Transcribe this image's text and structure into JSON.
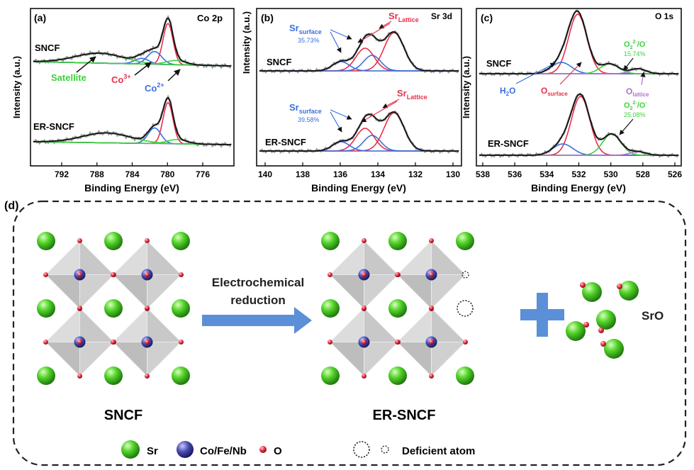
{
  "colors": {
    "sr": "#3fbf1f",
    "co": "#3c3fa0",
    "o": "#e8304a",
    "pink": "#e8304a",
    "blue": "#3b6fe0",
    "green": "#3dd13d",
    "purple": "#b070d0",
    "peach": "#f3c9a0",
    "fit": "#111111",
    "raw": "#999999",
    "arrow": "#5b8fd8"
  },
  "panel_a": {
    "letter": "(a)",
    "title": "Co 2p",
    "ylabel": "Intensity (a.u.)",
    "xlabel": "Binding Energy (eV)",
    "ticks": [
      "792",
      "788",
      "784",
      "780",
      "776"
    ],
    "sample_top": "SNCF",
    "sample_bottom": "ER-SNCF",
    "label_satellite": "Satellite",
    "label_co3": "Co",
    "label_co3_sup": "3+",
    "label_co2": "Co",
    "label_co2_sup": "2+"
  },
  "panel_b": {
    "letter": "(b)",
    "title": "Sr 3d",
    "ylabel": "Intensity (a.u.)",
    "xlabel": "Binding Energy (eV)",
    "ticks": [
      "140",
      "138",
      "136",
      "134",
      "132",
      "130"
    ],
    "sample_top": "SNCF",
    "sample_bottom": "ER-SNCF",
    "sr": "Sr",
    "sub_surface": "surface",
    "sub_lattice": "Lattice",
    "pct_top": "35.73%",
    "pct_bottom": "39.58%"
  },
  "panel_c": {
    "letter": "(c)",
    "title": "O 1s",
    "ylabel": "Intensity (a.u.)",
    "xlabel": "Binding Energy (eV)",
    "ticks": [
      "538",
      "536",
      "534",
      "532",
      "530",
      "528",
      "526"
    ],
    "sample_top": "SNCF",
    "sample_bottom": "ER-SNCF",
    "h2o_a": "H",
    "h2o_sub": "2",
    "h2o_b": "O",
    "o": "O",
    "sub_surface": "surface",
    "sub_lattice": "lattice",
    "o2_a": "O",
    "o2_sub": "2",
    "o2_sup": "2-",
    "o2_b": "/O",
    "o2_sup2": "-",
    "pct_top": "15.74%",
    "pct_bottom": "25.08%"
  },
  "panel_d": {
    "letter": "(d)",
    "label_left": "SNCF",
    "label_right": "ER-SNCF",
    "arrow_line1": "Electrochemical",
    "arrow_line2": "reduction",
    "product": "SrO",
    "legend_sr": "Sr",
    "legend_co": "Co/Fe/Nb",
    "legend_o": "O",
    "legend_deficient": "Deficient atom"
  }
}
